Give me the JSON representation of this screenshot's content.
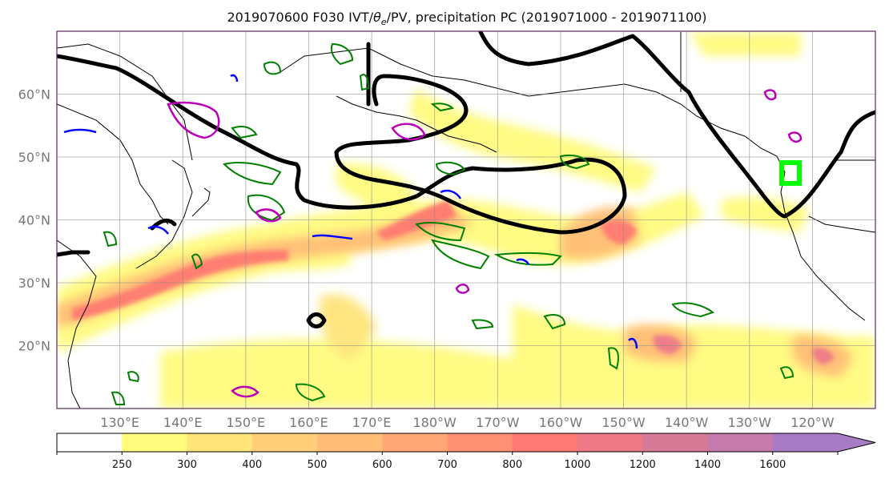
{
  "title": "2019070600 F030 IVT/θe/PV, precipitation PC (2019071000 - 2019071100)",
  "title_parts": {
    "prefix": "2019070600 F030 IVT/",
    "theta": "θ",
    "sub": "e",
    "suffix": "/PV, precipitation PC (2019071000 - 2019071100)"
  },
  "map": {
    "projection": "PlateCarree (central longitude 180)",
    "lat_range": [
      10,
      70
    ],
    "lon_range": [
      120,
      250
    ],
    "lat_ticks": [
      {
        "lat": 60,
        "label": "60°N"
      },
      {
        "lat": 50,
        "label": "50°N"
      },
      {
        "lat": 40,
        "label": "40°N"
      },
      {
        "lat": 30,
        "label": "30°N"
      },
      {
        "lat": 20,
        "label": "20°N"
      }
    ],
    "lon_ticks": [
      {
        "lon": 130,
        "label": "130°E"
      },
      {
        "lon": 140,
        "label": "140°E"
      },
      {
        "lon": 150,
        "label": "150°E"
      },
      {
        "lon": 160,
        "label": "160°E"
      },
      {
        "lon": 170,
        "label": "170°E"
      },
      {
        "lon": 180,
        "label": "180°W"
      },
      {
        "lon": 190,
        "label": "170°W"
      },
      {
        "lon": 200,
        "label": "160°W"
      },
      {
        "lon": 210,
        "label": "150°W"
      },
      {
        "lon": 220,
        "label": "140°W"
      },
      {
        "lon": 230,
        "label": "130°W"
      },
      {
        "lon": 240,
        "label": "120°W"
      }
    ],
    "grid": true,
    "layers": {
      "ivt_fill": "kg m-1 s-1 shading (yellow→red)",
      "pv_contour_color": "#000000",
      "precip_contour_colors": [
        "#008000",
        "#0000ff",
        "#bb00bb"
      ],
      "marker_color": "#00ff00"
    }
  },
  "colorbar": {
    "orientation": "horizontal",
    "extend": "max",
    "levels": [
      250,
      300,
      400,
      500,
      600,
      700,
      800,
      1000,
      1200,
      1400,
      1600
    ],
    "tick_labels": [
      "250",
      "300",
      "400",
      "500",
      "600",
      "700",
      "800",
      "1000",
      "1200",
      "1400",
      "1600"
    ],
    "colors": [
      "#ffffff",
      "#fffb7d",
      "#ffe47a",
      "#ffce78",
      "#ffbd77",
      "#ffa875",
      "#ff9073",
      "#ff7a72",
      "#ee7a88",
      "#d67a98",
      "#c47aaa",
      "#a87cc4"
    ]
  }
}
